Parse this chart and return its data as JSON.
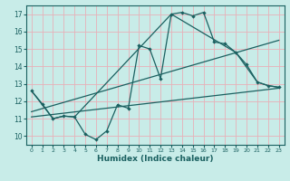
{
  "xlabel": "Humidex (Indice chaleur)",
  "bg_color": "#c8ece8",
  "grid_color": "#e8b0b8",
  "line_color": "#1a6060",
  "xlim": [
    -0.5,
    23.5
  ],
  "ylim": [
    9.5,
    17.5
  ],
  "xticks": [
    0,
    1,
    2,
    3,
    4,
    5,
    6,
    7,
    8,
    9,
    10,
    11,
    12,
    13,
    14,
    15,
    16,
    17,
    18,
    19,
    20,
    21,
    22,
    23
  ],
  "yticks": [
    10,
    11,
    12,
    13,
    14,
    15,
    16,
    17
  ],
  "line1_x": [
    0,
    1,
    2,
    3,
    4,
    5,
    6,
    7,
    8,
    9,
    10,
    11,
    12,
    13,
    14,
    15,
    16,
    17,
    18,
    19,
    20,
    21,
    22,
    23
  ],
  "line1_y": [
    12.6,
    11.85,
    11.0,
    11.15,
    11.1,
    10.1,
    9.8,
    10.3,
    11.8,
    11.6,
    15.2,
    15.0,
    13.3,
    17.0,
    17.1,
    16.9,
    17.1,
    15.4,
    15.3,
    14.8,
    14.1,
    13.1,
    12.9,
    12.8
  ],
  "line2_x": [
    0,
    2,
    3,
    4,
    13,
    19,
    21,
    22,
    23
  ],
  "line2_y": [
    12.6,
    11.0,
    11.15,
    11.1,
    17.0,
    14.8,
    13.1,
    12.9,
    12.8
  ],
  "line3_x": [
    0,
    23
  ],
  "line3_y": [
    11.1,
    12.75
  ],
  "line4_x": [
    0,
    23
  ],
  "line4_y": [
    11.4,
    15.5
  ]
}
